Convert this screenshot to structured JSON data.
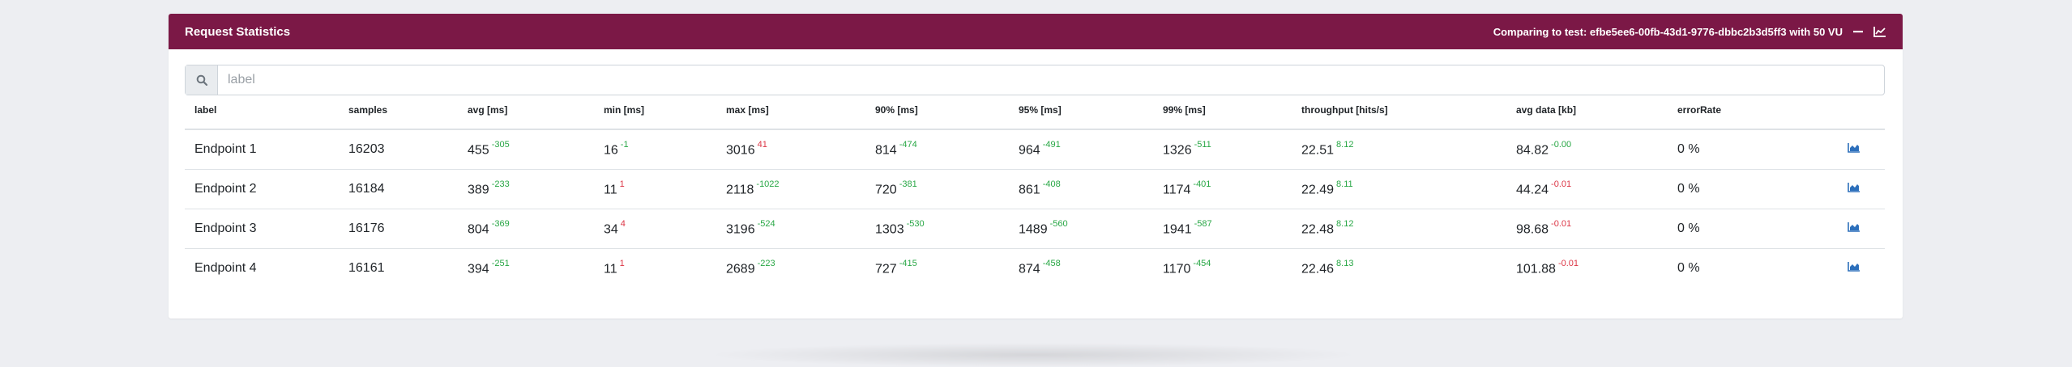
{
  "header": {
    "title": "Request Statistics",
    "comparing_text": "Comparing to test: efbe5ee6-00fb-43d1-9776-dbbc2b3d5ff3 with 50 VU",
    "icons": [
      "minus-icon",
      "line-chart-icon"
    ]
  },
  "search": {
    "placeholder": "label",
    "value": "",
    "icon": "search-icon"
  },
  "table": {
    "columns": [
      "label",
      "samples",
      "avg [ms]",
      "min [ms]",
      "max [ms]",
      "90% [ms]",
      "95% [ms]",
      "99% [ms]",
      "throughput [hits/s]",
      "avg data [kb]",
      "errorRate",
      ""
    ],
    "rows": [
      {
        "label": "Endpoint 1",
        "samples": "16203",
        "avg": {
          "value": "455",
          "diff": "-305"
        },
        "min": {
          "value": "16",
          "diff": "-1"
        },
        "max": {
          "value": "3016",
          "diff": "41"
        },
        "p90": {
          "value": "814",
          "diff": "-474"
        },
        "p95": {
          "value": "964",
          "diff": "-491"
        },
        "p99": {
          "value": "1326",
          "diff": "-511"
        },
        "throughput": {
          "value": "22.51",
          "diff": "8.12"
        },
        "data": {
          "value": "84.82",
          "diff": "-0.00"
        },
        "error_rate": "0 %"
      },
      {
        "label": "Endpoint 2",
        "samples": "16184",
        "avg": {
          "value": "389",
          "diff": "-233"
        },
        "min": {
          "value": "11",
          "diff": "1"
        },
        "max": {
          "value": "2118",
          "diff": "-1022"
        },
        "p90": {
          "value": "720",
          "diff": "-381"
        },
        "p95": {
          "value": "861",
          "diff": "-408"
        },
        "p99": {
          "value": "1174",
          "diff": "-401"
        },
        "throughput": {
          "value": "22.49",
          "diff": "8.11"
        },
        "data": {
          "value": "44.24",
          "diff": "-0.01"
        },
        "error_rate": "0 %"
      },
      {
        "label": "Endpoint 3",
        "samples": "16176",
        "avg": {
          "value": "804",
          "diff": "-369"
        },
        "min": {
          "value": "34",
          "diff": "4"
        },
        "max": {
          "value": "3196",
          "diff": "-524"
        },
        "p90": {
          "value": "1303",
          "diff": "-530"
        },
        "p95": {
          "value": "1489",
          "diff": "-560"
        },
        "p99": {
          "value": "1941",
          "diff": "-587"
        },
        "throughput": {
          "value": "22.48",
          "diff": "8.12"
        },
        "data": {
          "value": "98.68",
          "diff": "-0.01"
        },
        "error_rate": "0 %"
      },
      {
        "label": "Endpoint 4",
        "samples": "16161",
        "avg": {
          "value": "394",
          "diff": "-251"
        },
        "min": {
          "value": "11",
          "diff": "1"
        },
        "max": {
          "value": "2689",
          "diff": "-223"
        },
        "p90": {
          "value": "727",
          "diff": "-415"
        },
        "p95": {
          "value": "874",
          "diff": "-458"
        },
        "p99": {
          "value": "1170",
          "diff": "-454"
        },
        "throughput": {
          "value": "22.46",
          "diff": "8.13"
        },
        "data": {
          "value": "101.88",
          "diff": "-0.01"
        },
        "error_rate": "0 %"
      }
    ]
  },
  "colors": {
    "header_bg": "#7b1846",
    "improved": "#28a745",
    "worsened": "#dc3545",
    "icon_blue": "#2c6fbb"
  }
}
